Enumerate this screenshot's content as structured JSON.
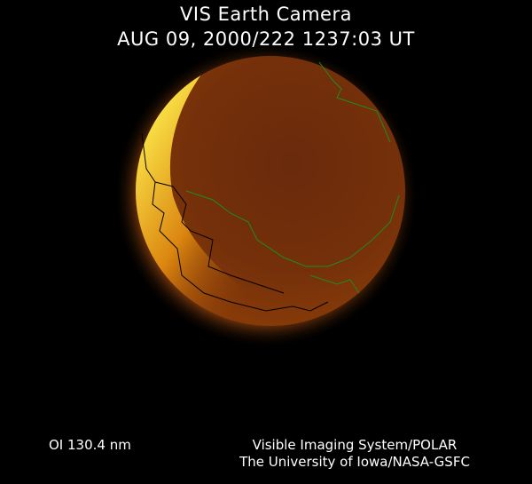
{
  "header": {
    "title": "VIS Earth Camera",
    "timestamp": "AUG 09, 2000/222 1237:03 UT"
  },
  "footer": {
    "filter": "OI  130.4 nm",
    "credit_line1": "Visible Imaging System/POLAR",
    "credit_line2": "The University of Iowa/NASA-GSFC"
  },
  "colors": {
    "background": "#000000",
    "disk_dark": "#6b2a0a",
    "aurora_bright": "#ffe040",
    "coastline_day": "#1e8c1e",
    "coastline_night": "#000000"
  }
}
